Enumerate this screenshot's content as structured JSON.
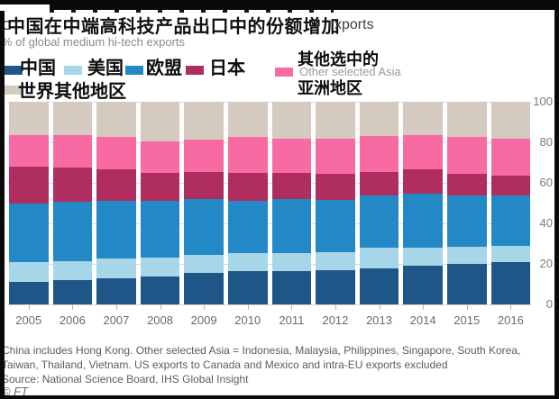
{
  "title": {
    "zh": "中国在中端高科技产品出口中的份额增加",
    "en_remnant": "xports",
    "left_remnant": "C",
    "subtitle": "% of global medium hi-tech exports"
  },
  "legend": {
    "china": {
      "label": "中国",
      "color": "#1f5688"
    },
    "us": {
      "label": "美国",
      "color": "#a6d6e8"
    },
    "eu": {
      "label": "欧盟",
      "color": "#2289c6"
    },
    "japan": {
      "label": "日本",
      "color": "#b02d5f"
    },
    "asia": {
      "line1": "其他选中的",
      "line2": "亚洲地区",
      "en_remnant": "Other selected Asia",
      "color": "#f86ba2"
    },
    "world": {
      "label": "世界其他地区",
      "color": "#d5cabf"
    }
  },
  "chart_data": {
    "type": "bar",
    "stacked": true,
    "title": "中国在中端高科技产品出口中的份额增加",
    "subtitle": "% of global medium hi-tech exports",
    "categories": [
      "2005",
      "2006",
      "2007",
      "2008",
      "2009",
      "2010",
      "2011",
      "2012",
      "2013",
      "2014",
      "2015",
      "2016"
    ],
    "series": [
      {
        "name": "中国",
        "color": "#1f5688",
        "values": [
          11,
          12,
          13,
          14,
          15.5,
          16.5,
          16.5,
          17,
          18,
          19,
          20,
          21
        ]
      },
      {
        "name": "美国",
        "color": "#a6d6e8",
        "values": [
          10,
          9.5,
          9.5,
          9,
          9,
          9,
          9,
          9,
          10,
          9,
          8.5,
          8
        ]
      },
      {
        "name": "欧盟",
        "color": "#2289c6",
        "values": [
          29,
          29,
          28.5,
          28,
          27.5,
          25.5,
          26.5,
          25.5,
          26,
          26.5,
          25.5,
          25
        ]
      },
      {
        "name": "日本",
        "color": "#b02d5f",
        "values": [
          18,
          17,
          15.5,
          14,
          13.5,
          14,
          13,
          13,
          11.5,
          12,
          10.5,
          9.5
        ]
      },
      {
        "name": "其他选中的亚洲地区",
        "color": "#f86ba2",
        "values": [
          15.5,
          16,
          16,
          15.5,
          16,
          17.5,
          17,
          17.5,
          17.5,
          17,
          18,
          18.5
        ]
      },
      {
        "name": "世界其他地区",
        "color": "#d5cabf",
        "values": [
          16.5,
          16.5,
          17.5,
          19.5,
          18.5,
          17.5,
          18,
          18,
          17,
          16.5,
          17.5,
          18
        ]
      }
    ],
    "ylim": [
      0,
      100
    ],
    "yticks": [
      0,
      20,
      40,
      60,
      80,
      100
    ],
    "grid": true,
    "legend_position": "top",
    "yaxis_side": "right"
  },
  "footer": {
    "note1": "China includes Hong Kong. Other selected Asia = Indonesia, Malaysia, Philippines, Singapore, South Korea,",
    "note2": "Taiwan, Thailand, Vietnam. US exports to Canada and Mexico and intra-EU exports excluded",
    "source": "Source: National Science Board, IHS Global Insight",
    "ft": "© FT"
  }
}
